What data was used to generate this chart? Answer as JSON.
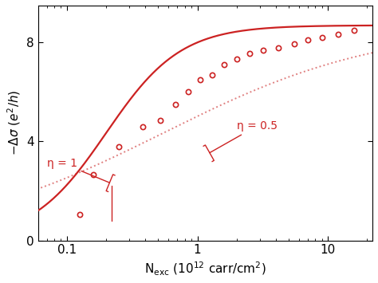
{
  "xlabel": "N$_{\\mathrm{exc}}$ (10$^{12}$ carr/cm$^2$)",
  "ylabel": "$-\\Delta\\sigma$ ($e^2/h$)",
  "xlim": [
    0.06,
    22
  ],
  "ylim": [
    0,
    9.5
  ],
  "yticks": [
    0,
    4,
    8
  ],
  "ytick_labels": [
    "0",
    "4",
    "8"
  ],
  "xtick_labels": [
    "0.1",
    "1",
    "10"
  ],
  "color_solid": "#cc2222",
  "color_dotted": "#e08080",
  "color_data": "#cc2222",
  "annotation_eta1": "η = 1",
  "annotation_eta05": "η = 0.5",
  "sigma_max": 8.7,
  "x0_eta1": 0.2,
  "k_eta1": 3.5,
  "x0_eta05": 0.55,
  "k_eta05": 1.2,
  "data_x": [
    0.125,
    0.16,
    0.25,
    0.38,
    0.52,
    0.68,
    0.85,
    1.05,
    1.3,
    1.6,
    2.0,
    2.5,
    3.2,
    4.2,
    5.5,
    7.0,
    9.0,
    12.0,
    16.0
  ],
  "data_y": [
    1.05,
    2.65,
    3.8,
    4.6,
    4.85,
    5.5,
    6.0,
    6.5,
    6.7,
    7.1,
    7.35,
    7.55,
    7.7,
    7.8,
    7.95,
    8.1,
    8.2,
    8.35,
    8.5
  ]
}
